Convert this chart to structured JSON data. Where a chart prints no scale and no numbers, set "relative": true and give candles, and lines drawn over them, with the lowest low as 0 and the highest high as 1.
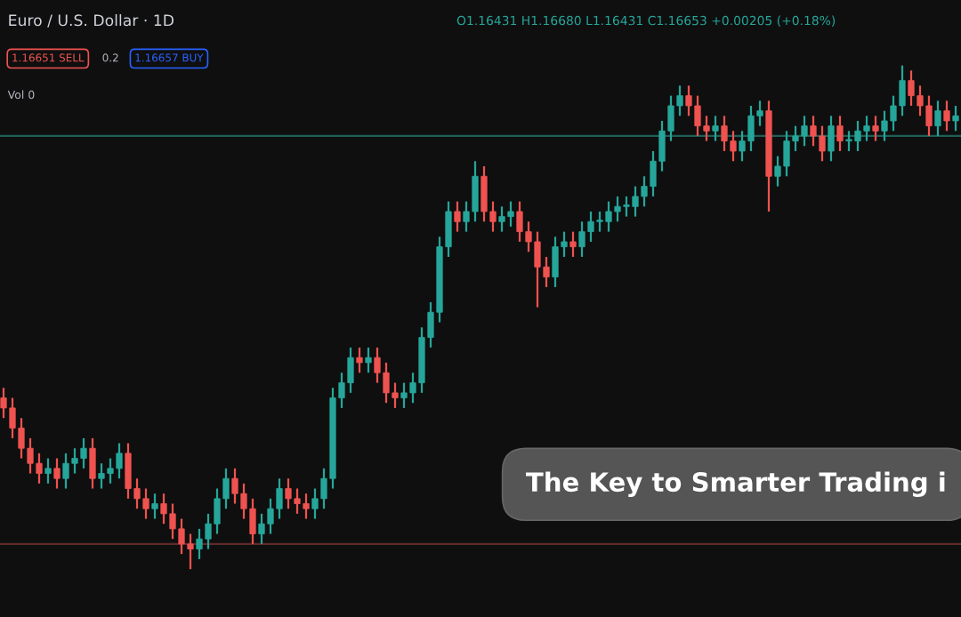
{
  "chart_data": {
    "type": "candlestick",
    "relative": true,
    "title": "Euro / U.S. Dollar · 1D",
    "annotations": [
      "O1.16431 H1.16680 L1.16431 C1.16653 +0.00205 (+0.18%)",
      "1.16651 SELL",
      "0.2",
      "1.16657 BUY",
      "Vol 0",
      "The Key to Smarter Trading i"
    ],
    "colors": [
      "#ef5350",
      "#ef5350",
      "#ef5350",
      "#ef5350",
      "#ef5350",
      "#26a69a",
      "#ef5350",
      "#26a69a",
      "#26a69a",
      "#26a69a",
      "#ef5350",
      "#26a69a",
      "#26a69a",
      "#26a69a",
      "#ef5350",
      "#ef5350",
      "#ef5350",
      "#26a69a",
      "#ef5350",
      "#ef5350",
      "#ef5350",
      "#ef5350",
      "#26a69a",
      "#26a69a",
      "#26a69a",
      "#26a69a",
      "#ef5350",
      "#ef5350",
      "#ef5350",
      "#26a69a",
      "#26a69a",
      "#26a69a",
      "#ef5350",
      "#ef5350",
      "#ef5350",
      "#26a69a",
      "#26a69a",
      "#26a69a",
      "#26a69a",
      "#26a69a",
      "#ef5350",
      "#26a69a",
      "#ef5350",
      "#ef5350",
      "#ef5350",
      "#26a69a",
      "#26a69a",
      "#26a69a",
      "#26a69a",
      "#26a69a",
      "#26a69a",
      "#ef5350",
      "#26a69a",
      "#26a69a",
      "#ef5350",
      "#ef5350",
      "#26a69a",
      "#26a69a",
      "#ef5350",
      "#ef5350",
      "#ef5350",
      "#ef5350",
      "#26a69a",
      "#26a69a",
      "#ef5350",
      "#26a69a",
      "#26a69a",
      "#26a69a",
      "#26a69a",
      "#26a69a",
      "#26a69a",
      "#26a69a",
      "#26a69a",
      "#26a69a",
      "#26a69a",
      "#26a69a",
      "#26a69a",
      "#ef5350",
      "#ef5350",
      "#ef5350",
      "#26a69a",
      "#ef5350",
      "#ef5350",
      "#26a69a",
      "#26a69a",
      "#26a69a",
      "#ef5350",
      "#26a69a",
      "#26a69a",
      "#26a69a",
      "#26a69a",
      "#ef5350",
      "#ef5350",
      "#26a69a",
      "#ef5350",
      "#26a69a",
      "#26a69a",
      "#26a69a",
      "#ef5350",
      "#26a69a",
      "#26a69a",
      "#26a69a",
      "#ef5350",
      "#ef5350",
      "#ef5350",
      "#26a69a",
      "#ef5350",
      "#26a69a"
    ],
    "ref_lines": [
      {
        "axis": "y",
        "value": 0.86,
        "color": "#1f5e57"
      },
      {
        "axis": "y",
        "value": 0.05,
        "color": "#5e2a2a"
      }
    ],
    "categories": [
      null,
      null,
      null,
      null,
      null,
      null,
      null,
      null,
      null,
      null,
      null,
      null,
      null,
      null,
      null,
      null,
      null,
      null,
      null,
      null,
      null,
      null,
      null,
      null,
      null,
      null,
      null,
      null,
      null,
      null,
      null,
      null,
      null,
      null,
      null,
      null,
      null,
      null,
      null,
      null,
      null,
      null,
      null,
      null,
      null,
      null,
      null,
      null,
      null,
      null,
      null,
      null,
      null,
      null,
      null,
      null,
      null,
      null,
      null,
      null,
      null,
      null,
      null,
      null,
      null,
      null,
      null,
      null,
      null,
      null,
      null,
      null,
      null,
      null,
      null,
      null,
      null,
      null,
      null,
      null,
      null,
      null,
      null,
      null,
      null,
      null,
      null,
      null,
      null,
      null,
      null,
      null,
      null,
      null,
      null,
      null,
      null,
      null,
      null,
      null,
      null,
      null,
      null,
      null,
      null,
      null,
      null,
      null
    ],
    "ohlc": [
      [
        0.34,
        0.36,
        0.3,
        0.32
      ],
      [
        0.32,
        0.34,
        0.26,
        0.28
      ],
      [
        0.28,
        0.3,
        0.22,
        0.24
      ],
      [
        0.24,
        0.26,
        0.19,
        0.21
      ],
      [
        0.21,
        0.23,
        0.17,
        0.19
      ],
      [
        0.19,
        0.22,
        0.17,
        0.2
      ],
      [
        0.2,
        0.22,
        0.16,
        0.18
      ],
      [
        0.18,
        0.23,
        0.16,
        0.21
      ],
      [
        0.21,
        0.24,
        0.19,
        0.22
      ],
      [
        0.22,
        0.26,
        0.2,
        0.24
      ],
      [
        0.24,
        0.26,
        0.16,
        0.18
      ],
      [
        0.18,
        0.21,
        0.16,
        0.19
      ],
      [
        0.19,
        0.22,
        0.17,
        0.2
      ],
      [
        0.2,
        0.25,
        0.18,
        0.23
      ],
      [
        0.23,
        0.25,
        0.14,
        0.16
      ],
      [
        0.16,
        0.18,
        0.12,
        0.14
      ],
      [
        0.14,
        0.16,
        0.1,
        0.12
      ],
      [
        0.12,
        0.15,
        0.1,
        0.13
      ],
      [
        0.13,
        0.15,
        0.09,
        0.11
      ],
      [
        0.11,
        0.13,
        0.06,
        0.08
      ],
      [
        0.08,
        0.1,
        0.03,
        0.05
      ],
      [
        0.05,
        0.07,
        0.0,
        0.04
      ],
      [
        0.04,
        0.08,
        0.02,
        0.06
      ],
      [
        0.06,
        0.11,
        0.04,
        0.09
      ],
      [
        0.09,
        0.16,
        0.07,
        0.14
      ],
      [
        0.14,
        0.2,
        0.12,
        0.18
      ],
      [
        0.18,
        0.2,
        0.13,
        0.15
      ],
      [
        0.15,
        0.17,
        0.1,
        0.12
      ],
      [
        0.12,
        0.14,
        0.05,
        0.07
      ],
      [
        0.07,
        0.11,
        0.05,
        0.09
      ],
      [
        0.09,
        0.14,
        0.07,
        0.12
      ],
      [
        0.12,
        0.18,
        0.1,
        0.16
      ],
      [
        0.16,
        0.18,
        0.12,
        0.14
      ],
      [
        0.14,
        0.16,
        0.11,
        0.13
      ],
      [
        0.13,
        0.15,
        0.1,
        0.12
      ],
      [
        0.12,
        0.16,
        0.1,
        0.14
      ],
      [
        0.14,
        0.2,
        0.12,
        0.18
      ],
      [
        0.18,
        0.36,
        0.16,
        0.34
      ],
      [
        0.34,
        0.39,
        0.32,
        0.37
      ],
      [
        0.37,
        0.44,
        0.35,
        0.42
      ],
      [
        0.42,
        0.44,
        0.39,
        0.41
      ],
      [
        0.41,
        0.44,
        0.39,
        0.42
      ],
      [
        0.42,
        0.44,
        0.37,
        0.39
      ],
      [
        0.39,
        0.41,
        0.33,
        0.35
      ],
      [
        0.35,
        0.37,
        0.32,
        0.34
      ],
      [
        0.34,
        0.37,
        0.32,
        0.35
      ],
      [
        0.35,
        0.39,
        0.33,
        0.37
      ],
      [
        0.37,
        0.48,
        0.35,
        0.46
      ],
      [
        0.46,
        0.53,
        0.44,
        0.51
      ],
      [
        0.51,
        0.66,
        0.49,
        0.64
      ],
      [
        0.64,
        0.73,
        0.62,
        0.71
      ],
      [
        0.71,
        0.73,
        0.67,
        0.69
      ],
      [
        0.69,
        0.73,
        0.67,
        0.71
      ],
      [
        0.71,
        0.81,
        0.69,
        0.78
      ],
      [
        0.78,
        0.8,
        0.69,
        0.71
      ],
      [
        0.71,
        0.73,
        0.67,
        0.69
      ],
      [
        0.69,
        0.72,
        0.67,
        0.7
      ],
      [
        0.7,
        0.73,
        0.68,
        0.71
      ],
      [
        0.71,
        0.73,
        0.65,
        0.67
      ],
      [
        0.67,
        0.69,
        0.63,
        0.65
      ],
      [
        0.65,
        0.67,
        0.52,
        0.6
      ],
      [
        0.6,
        0.62,
        0.56,
        0.58
      ],
      [
        0.58,
        0.66,
        0.56,
        0.64
      ],
      [
        0.64,
        0.67,
        0.62,
        0.65
      ],
      [
        0.65,
        0.67,
        0.62,
        0.64
      ],
      [
        0.64,
        0.69,
        0.62,
        0.67
      ],
      [
        0.67,
        0.71,
        0.65,
        0.69
      ],
      [
        0.69,
        0.71,
        0.67,
        0.69
      ],
      [
        0.69,
        0.73,
        0.67,
        0.71
      ],
      [
        0.71,
        0.74,
        0.69,
        0.72
      ],
      [
        0.72,
        0.74,
        0.7,
        0.72
      ],
      [
        0.72,
        0.76,
        0.7,
        0.74
      ],
      [
        0.74,
        0.78,
        0.72,
        0.76
      ],
      [
        0.76,
        0.83,
        0.74,
        0.81
      ],
      [
        0.81,
        0.89,
        0.79,
        0.87
      ],
      [
        0.87,
        0.94,
        0.85,
        0.92
      ],
      [
        0.92,
        0.96,
        0.9,
        0.94
      ],
      [
        0.94,
        0.96,
        0.9,
        0.92
      ],
      [
        0.92,
        0.94,
        0.86,
        0.88
      ],
      [
        0.88,
        0.9,
        0.85,
        0.87
      ],
      [
        0.87,
        0.9,
        0.85,
        0.88
      ],
      [
        0.88,
        0.9,
        0.83,
        0.85
      ],
      [
        0.85,
        0.87,
        0.81,
        0.83
      ],
      [
        0.83,
        0.87,
        0.81,
        0.85
      ],
      [
        0.85,
        0.92,
        0.83,
        0.9
      ],
      [
        0.9,
        0.93,
        0.88,
        0.91
      ],
      [
        0.91,
        0.93,
        0.71,
        0.78
      ],
      [
        0.78,
        0.82,
        0.76,
        0.8
      ],
      [
        0.8,
        0.87,
        0.78,
        0.85
      ],
      [
        0.85,
        0.88,
        0.83,
        0.86
      ],
      [
        0.86,
        0.9,
        0.84,
        0.88
      ],
      [
        0.88,
        0.9,
        0.84,
        0.86
      ],
      [
        0.86,
        0.88,
        0.81,
        0.83
      ],
      [
        0.83,
        0.9,
        0.81,
        0.88
      ],
      [
        0.88,
        0.9,
        0.83,
        0.85
      ],
      [
        0.85,
        0.87,
        0.83,
        0.85
      ],
      [
        0.85,
        0.89,
        0.83,
        0.87
      ],
      [
        0.87,
        0.9,
        0.85,
        0.88
      ],
      [
        0.88,
        0.9,
        0.85,
        0.87
      ],
      [
        0.87,
        0.91,
        0.85,
        0.89
      ],
      [
        0.89,
        0.94,
        0.87,
        0.92
      ],
      [
        0.92,
        1.0,
        0.9,
        0.97
      ],
      [
        0.97,
        0.99,
        0.92,
        0.94
      ],
      [
        0.94,
        0.96,
        0.9,
        0.92
      ],
      [
        0.92,
        0.94,
        0.86,
        0.88
      ],
      [
        0.88,
        0.93,
        0.86,
        0.91
      ],
      [
        0.91,
        0.93,
        0.87,
        0.89
      ],
      [
        0.89,
        0.92,
        0.87,
        0.9
      ]
    ]
  }
}
